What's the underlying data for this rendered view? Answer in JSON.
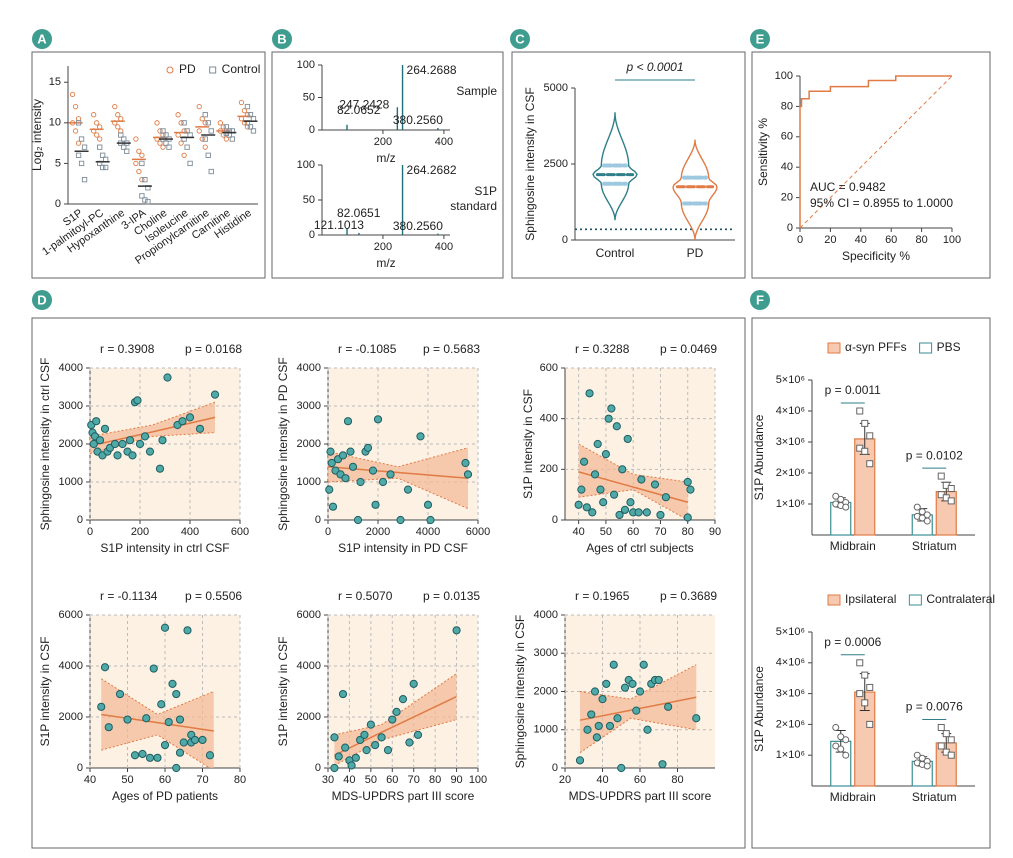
{
  "chart_data": [
    {
      "label": "A",
      "type": "strip",
      "categories": [
        "S1P",
        "1-palmitoyl-PC",
        "Hypoxanthine",
        "3-IPA",
        "Choline",
        "Isoleucine",
        "Propionylcarnitine",
        "Carnitine",
        "Histidine"
      ],
      "series": [
        {
          "name": "PD",
          "color": "#e07b45",
          "marker": "circle",
          "values": [
            [
              13.5,
              12,
              10.5,
              10,
              9,
              7.5
            ],
            [
              11,
              10,
              9.5,
              9,
              8.5,
              8
            ],
            [
              12,
              11,
              10.5,
              10,
              9.5,
              9
            ],
            [
              8,
              6.5,
              6,
              5,
              4,
              3
            ],
            [
              10,
              9,
              8.5,
              8,
              7.5,
              7
            ],
            [
              11,
              10,
              9,
              8.5,
              7.5,
              6
            ],
            [
              12,
              10.5,
              10,
              9,
              8,
              7
            ],
            [
              10,
              9.5,
              9,
              9,
              8.5,
              8
            ],
            [
              12.5,
              11.5,
              11,
              10.5,
              10,
              9.5
            ]
          ],
          "medians": [
            10,
            9.2,
            10.2,
            5.5,
            8.2,
            8.8,
            9.5,
            9,
            10.8
          ]
        },
        {
          "name": "Control",
          "color": "#7d8c99",
          "marker": "square",
          "values": [
            [
              10,
              8,
              7,
              6,
              5,
              3
            ],
            [
              7,
              6,
              5.5,
              5,
              4.5,
              4.5
            ],
            [
              8.5,
              8,
              7.5,
              7.5,
              7,
              6.5
            ],
            [
              5,
              3,
              2,
              1,
              0.5,
              0.3
            ],
            [
              9,
              8.5,
              8,
              8,
              7.5,
              7
            ],
            [
              10,
              9,
              8.5,
              8,
              7,
              5
            ],
            [
              11,
              10,
              9,
              8,
              6,
              4
            ],
            [
              9.5,
              9,
              9,
              8.7,
              8.5,
              8
            ],
            [
              12,
              11,
              10.5,
              10,
              9.5,
              9
            ]
          ],
          "medians": [
            6.5,
            5.2,
            7.5,
            2.2,
            8,
            8.2,
            8.5,
            8.8,
            10.2
          ]
        }
      ],
      "ylabel": "Log₂ intensity",
      "ylim": [
        0,
        17
      ],
      "yticks": [
        0,
        5,
        10,
        15
      ]
    },
    {
      "label": "B",
      "type": "spectrum",
      "title_lines": [
        "Sample"
      ],
      "color": "#1f6f7a",
      "x": [
        82.0652,
        247.2428,
        264.2688,
        380.256
      ],
      "values": [
        8,
        35,
        100,
        3
      ],
      "peak_labels": [
        "82.0652",
        "247.2428",
        "264.2688",
        "380.2560"
      ],
      "xlabel": "m/z",
      "xlim": [
        0,
        420
      ],
      "xticks": [
        200,
        400
      ],
      "ylim": [
        0,
        100
      ],
      "yticks": [
        0,
        50,
        100
      ]
    },
    {
      "type": "spectrum",
      "title_lines": [
        "S1P",
        "standard"
      ],
      "color": "#1f6f7a",
      "x": [
        82.0651,
        121.1013,
        264.2682,
        380.256
      ],
      "values": [
        10,
        3,
        100,
        2
      ],
      "peak_labels": [
        "82.0651",
        "121.1013",
        "264.2682",
        "380.2560"
      ],
      "xlabel": "m/z",
      "xlim": [
        0,
        420
      ],
      "xticks": [
        200,
        400
      ],
      "ylim": [
        0,
        100
      ],
      "yticks": [
        0,
        50,
        100
      ]
    },
    {
      "label": "C",
      "type": "violin",
      "categories": [
        "Control",
        "PD"
      ],
      "colors": [
        "#2e7f89",
        "#e07b45"
      ],
      "violins": [
        {
          "min": 650,
          "q1": 1850,
          "median": 2150,
          "q3": 2450,
          "max": 4200
        },
        {
          "min": 0,
          "q1": 1200,
          "median": 1750,
          "q3": 2050,
          "max": 3300
        }
      ],
      "threshold": 350,
      "annotation": "p < 0.0001",
      "ylabel": "Sphingosine intensity in CSF",
      "ylim": [
        0,
        5000
      ],
      "yticks": [
        0,
        2500,
        5000
      ]
    },
    {
      "label": "E",
      "type": "roc",
      "color": "#e07b45",
      "x": [
        0,
        0,
        1,
        1,
        6,
        6,
        20,
        20,
        45,
        45,
        63,
        63,
        100
      ],
      "values": [
        0,
        80,
        80,
        85,
        85,
        90,
        90,
        93,
        93,
        97,
        97,
        100,
        100
      ],
      "annotations": [
        "AUC = 0.9482",
        "95% CI = 0.8955 to 1.0000"
      ],
      "xlabel": "Specificity %",
      "ylabel": "Sensitivity %",
      "xlim": [
        0,
        100
      ],
      "xticks": [
        0,
        20,
        40,
        60,
        80,
        100
      ],
      "ylim": [
        0,
        100
      ],
      "yticks": [
        0,
        20,
        40,
        60,
        80,
        100
      ]
    },
    {
      "label": "D",
      "type": "scatter",
      "grid": true,
      "color": "#4fa9a6",
      "x": [
        5,
        10,
        15,
        20,
        25,
        30,
        40,
        50,
        60,
        70,
        80,
        100,
        110,
        130,
        150,
        160,
        170,
        180,
        190,
        200,
        220,
        240,
        280,
        290,
        310,
        350,
        370,
        400,
        440,
        500
      ],
      "values": [
        2500,
        2300,
        2000,
        2200,
        2600,
        1800,
        2100,
        1700,
        2400,
        1800,
        1900,
        2000,
        1700,
        2000,
        1800,
        2100,
        1700,
        3100,
        3150,
        2000,
        2200,
        1800,
        1350,
        2100,
        3750,
        2500,
        2600,
        2700,
        2400,
        3300
      ],
      "fit": {
        "x": [
          0,
          250,
          500
        ],
        "y": [
          1950,
          2320,
          2700
        ],
        "upper": [
          2200,
          2500,
          3100
        ],
        "lower": [
          1750,
          2200,
          2300
        ]
      },
      "annotations": [
        "r = 0.3908",
        "p = 0.0168"
      ],
      "xlabel": "S1P intensity in ctrl CSF",
      "ylabel": "Sphingosine intensity in ctrl CSF",
      "xlim": [
        0,
        600
      ],
      "xticks": [
        0,
        200,
        400,
        600
      ],
      "ylim": [
        0,
        4000
      ],
      "yticks": [
        0,
        1000,
        2000,
        3000,
        4000
      ]
    },
    {
      "type": "scatter",
      "grid": true,
      "color": "#4fa9a6",
      "x": [
        50,
        100,
        150,
        200,
        300,
        400,
        500,
        600,
        700,
        800,
        900,
        1000,
        1200,
        1300,
        1500,
        1600,
        1800,
        1900,
        2000,
        2200,
        2500,
        2900,
        3200,
        3700,
        4000,
        4100,
        5500,
        5600
      ],
      "values": [
        800,
        1800,
        1500,
        350,
        1300,
        1600,
        1200,
        1700,
        1100,
        2600,
        1800,
        1400,
        0,
        1000,
        1800,
        1900,
        1300,
        400,
        2650,
        1000,
        1200,
        0,
        800,
        2200,
        400,
        0,
        1500,
        1200
      ],
      "fit": {
        "x": [
          0,
          2800,
          5600
        ],
        "y": [
          1400,
          1250,
          1100
        ],
        "upper": [
          1800,
          1400,
          1900
        ],
        "lower": [
          1000,
          1100,
          300
        ]
      },
      "annotations": [
        "r = -0.1085",
        "p = 0.5683"
      ],
      "xlabel": "S1P intensity in PD CSF",
      "ylabel": "Sphingosine intensity in PD CSF",
      "xlim": [
        0,
        6000
      ],
      "xticks": [
        0,
        2000,
        4000,
        6000
      ],
      "ylim": [
        0,
        4000
      ],
      "yticks": [
        0,
        1000,
        2000,
        3000,
        4000
      ]
    },
    {
      "type": "scatter",
      "grid": true,
      "color": "#4fa9a6",
      "x": [
        40,
        41,
        42,
        43,
        44,
        45,
        46,
        47,
        48,
        49,
        50,
        51,
        52,
        53,
        54,
        55,
        56,
        57,
        58,
        59,
        60,
        62,
        63,
        65,
        68,
        70,
        72,
        80,
        80,
        81
      ],
      "values": [
        60,
        120,
        230,
        50,
        500,
        30,
        180,
        300,
        120,
        70,
        260,
        400,
        440,
        100,
        370,
        20,
        200,
        40,
        320,
        70,
        30,
        30,
        160,
        30,
        140,
        20,
        90,
        10,
        150,
        120
      ],
      "fit": {
        "x": [
          40,
          60,
          80
        ],
        "y": [
          190,
          130,
          70
        ],
        "upper": [
          300,
          180,
          150
        ],
        "lower": [
          90,
          120,
          0
        ]
      },
      "annotations": [
        "r = 0.3288",
        "p = 0.0469"
      ],
      "xlabel": "Ages of ctrl subjects",
      "ylabel": "S1P intensity in CSF",
      "xlim": [
        35,
        90
      ],
      "xticks": [
        40,
        50,
        60,
        70,
        80,
        90
      ],
      "ylim": [
        0,
        600
      ],
      "yticks": [
        0,
        200,
        400,
        600
      ]
    },
    {
      "type": "scatter",
      "grid": true,
      "color": "#4fa9a6",
      "x": [
        43,
        44,
        45,
        48,
        50,
        52,
        54,
        55,
        56,
        57,
        58,
        59,
        60,
        60,
        61,
        62,
        63,
        63,
        64,
        64,
        65,
        66,
        67,
        67,
        68,
        70,
        72
      ],
      "values": [
        2400,
        3950,
        1600,
        2900,
        1900,
        500,
        550,
        1950,
        400,
        3900,
        400,
        2500,
        5500,
        900,
        1800,
        3300,
        0,
        2900,
        1900,
        600,
        1000,
        5400,
        1300,
        1000,
        1100,
        1100,
        500
      ],
      "fit": {
        "x": [
          43,
          58,
          73
        ],
        "y": [
          2100,
          1780,
          1450
        ],
        "upper": [
          3500,
          2100,
          3000
        ],
        "lower": [
          700,
          1300,
          -100
        ]
      },
      "annotations": [
        "r = -0.1134",
        "p = 0.5506"
      ],
      "xlabel": "Ages of PD patients",
      "ylabel": "S1P intensity in CSF",
      "xlim": [
        40,
        80
      ],
      "xticks": [
        40,
        50,
        60,
        70,
        80
      ],
      "ylim": [
        0,
        6000
      ],
      "yticks": [
        0,
        2000,
        4000,
        6000
      ]
    },
    {
      "type": "scatter",
      "grid": true,
      "color": "#4fa9a6",
      "x": [
        33,
        33,
        35,
        37,
        38,
        40,
        41,
        43,
        45,
        47,
        48,
        50,
        52,
        55,
        58,
        60,
        62,
        65,
        68,
        70,
        72,
        90
      ],
      "values": [
        0,
        1200,
        450,
        2900,
        800,
        300,
        100,
        400,
        1100,
        1300,
        700,
        1700,
        900,
        1200,
        700,
        1900,
        2200,
        2700,
        1000,
        3300,
        1300,
        5400
      ],
      "fit": {
        "x": [
          33,
          55,
          90
        ],
        "y": [
          500,
          1400,
          2800
        ],
        "upper": [
          1300,
          1700,
          3700
        ],
        "lower": [
          100,
          1100,
          1900
        ]
      },
      "annotations": [
        "r = 0.5070",
        "p = 0.0135"
      ],
      "xlabel": "MDS-UPDRS part III score",
      "ylabel": "S1P intensity in CSF",
      "xlim": [
        30,
        100
      ],
      "xticks": [
        30,
        40,
        50,
        60,
        70,
        80,
        90,
        100
      ],
      "ylim": [
        0,
        6000
      ],
      "yticks": [
        0,
        2000,
        4000,
        6000
      ]
    },
    {
      "type": "scatter",
      "grid": true,
      "color": "#4fa9a6",
      "x": [
        28,
        32,
        34,
        36,
        37,
        38,
        40,
        42,
        44,
        46,
        48,
        50,
        52,
        54,
        56,
        58,
        60,
        62,
        64,
        66,
        68,
        70,
        72,
        75,
        90
      ],
      "values": [
        200,
        1000,
        1400,
        2000,
        800,
        1100,
        1800,
        2200,
        1100,
        2700,
        1300,
        0,
        2100,
        2300,
        2200,
        1500,
        2000,
        2700,
        1000,
        2200,
        2300,
        2300,
        100,
        1600,
        1300
      ],
      "fit": {
        "x": [
          28,
          55,
          90
        ],
        "y": [
          1250,
          1510,
          1850
        ],
        "upper": [
          2000,
          1800,
          2700
        ],
        "lower": [
          400,
          1300,
          1000
        ]
      },
      "annotations": [
        "r = 0.1965",
        "p = 0.3689"
      ],
      "xlabel": "MDS-UPDRS part III score",
      "ylabel": "Sphingosine intensity in CSF",
      "xlim": [
        20,
        100
      ],
      "xticks": [
        20,
        40,
        60,
        80
      ],
      "ylim": [
        0,
        4000
      ],
      "yticks": [
        0,
        1000,
        2000,
        3000,
        4000
      ]
    },
    {
      "label": "F",
      "type": "bar",
      "categories": [
        "Midbrain",
        "Striatum"
      ],
      "series": [
        {
          "name": "α-syn PFFs",
          "color": "#f6c9b0",
          "edgecolor": "#e07b45",
          "values": [
            3100000,
            1400000
          ],
          "errors": [
            500000,
            300000
          ],
          "points": [
            [
              4000000,
              3600000,
              3200000,
              2800000,
              2700000,
              2300000
            ],
            [
              1900000,
              1600000,
              1500000,
              1300000,
              1200000,
              1100000
            ]
          ]
        },
        {
          "name": "PBS",
          "color": "#ffffff",
          "edgecolor": "#3a8f95",
          "values": [
            1050000,
            650000
          ],
          "errors": [
            150000,
            200000
          ],
          "points": [
            [
              1250000,
              1150000,
              1050000,
              1000000,
              950000,
              900000
            ],
            [
              900000,
              750000,
              650000,
              600000,
              550000,
              450000
            ]
          ]
        }
      ],
      "annotations": [
        "p = 0.0011",
        "p = 0.0102"
      ],
      "ylabel": "S1P Abundance",
      "ylim": [
        0,
        5000000
      ],
      "yticks": [
        {
          "value": 1000000,
          "label": "1×10⁶"
        },
        {
          "value": 2000000,
          "label": "2×10⁶"
        },
        {
          "value": 3000000,
          "label": "3×10⁶"
        },
        {
          "value": 4000000,
          "label": "4×10⁶"
        },
        {
          "value": 5000000,
          "label": "5×10⁶"
        }
      ]
    },
    {
      "type": "bar",
      "categories": [
        "Midbrain",
        "Striatum"
      ],
      "series": [
        {
          "name": "Ipsilateral",
          "color": "#f6c9b0",
          "edgecolor": "#e07b45",
          "values": [
            3050000,
            1400000
          ],
          "errors": [
            600000,
            300000
          ],
          "points": [
            [
              4000000,
              3600000,
              3200000,
              3000000,
              2700000,
              2000000
            ],
            [
              1900000,
              1700000,
              1500000,
              1300000,
              1100000,
              1000000
            ]
          ]
        },
        {
          "name": "Contralateral",
          "color": "#ffffff",
          "edgecolor": "#3a8f95",
          "values": [
            1450000,
            800000
          ],
          "errors": [
            350000,
            150000
          ],
          "points": [
            [
              1900000,
              1600000,
              1500000,
              1300000,
              1200000,
              1000000
            ],
            [
              1000000,
              900000,
              800000,
              750000,
              700000,
              650000
            ]
          ]
        }
      ],
      "annotations": [
        "p = 0.0006",
        "p = 0.0076"
      ],
      "ylabel": "S1P Abundance",
      "ylim": [
        0,
        5000000
      ],
      "yticks": [
        {
          "value": 1000000,
          "label": "1×10⁶"
        },
        {
          "value": 2000000,
          "label": "2×10⁶"
        },
        {
          "value": 3000000,
          "label": "3×10⁶"
        },
        {
          "value": 4000000,
          "label": "4×10⁶"
        },
        {
          "value": 5000000,
          "label": "5×10⁶"
        }
      ]
    }
  ]
}
